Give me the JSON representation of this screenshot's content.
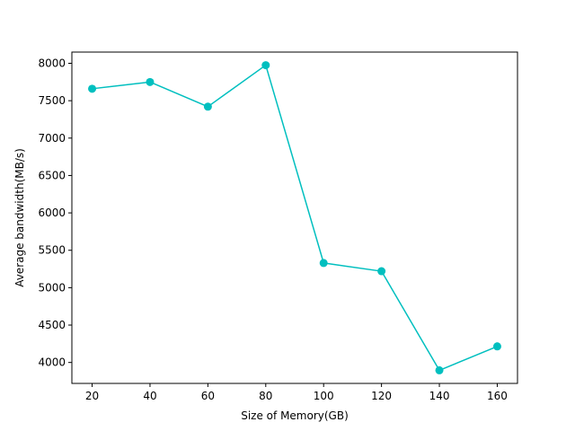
{
  "chart_data": {
    "type": "line",
    "title": "",
    "xlabel": "Size of Memory(GB)",
    "ylabel": "Average bandwidth(MB/s)",
    "x": [
      20,
      40,
      60,
      80,
      100,
      120,
      140,
      160
    ],
    "series": [
      {
        "values": [
          7660,
          7750,
          7420,
          7975,
          5330,
          5220,
          3895,
          4215
        ],
        "color": "#00bfbf",
        "marker": "circle"
      }
    ],
    "xlim": [
      13,
      167
    ],
    "ylim": [
      3720,
      8150
    ],
    "xticks": [
      20,
      40,
      60,
      80,
      100,
      120,
      140,
      160
    ],
    "yticks": [
      4000,
      4500,
      5000,
      5500,
      6000,
      6500,
      7000,
      7500,
      8000
    ],
    "grid": false,
    "legend": false
  }
}
